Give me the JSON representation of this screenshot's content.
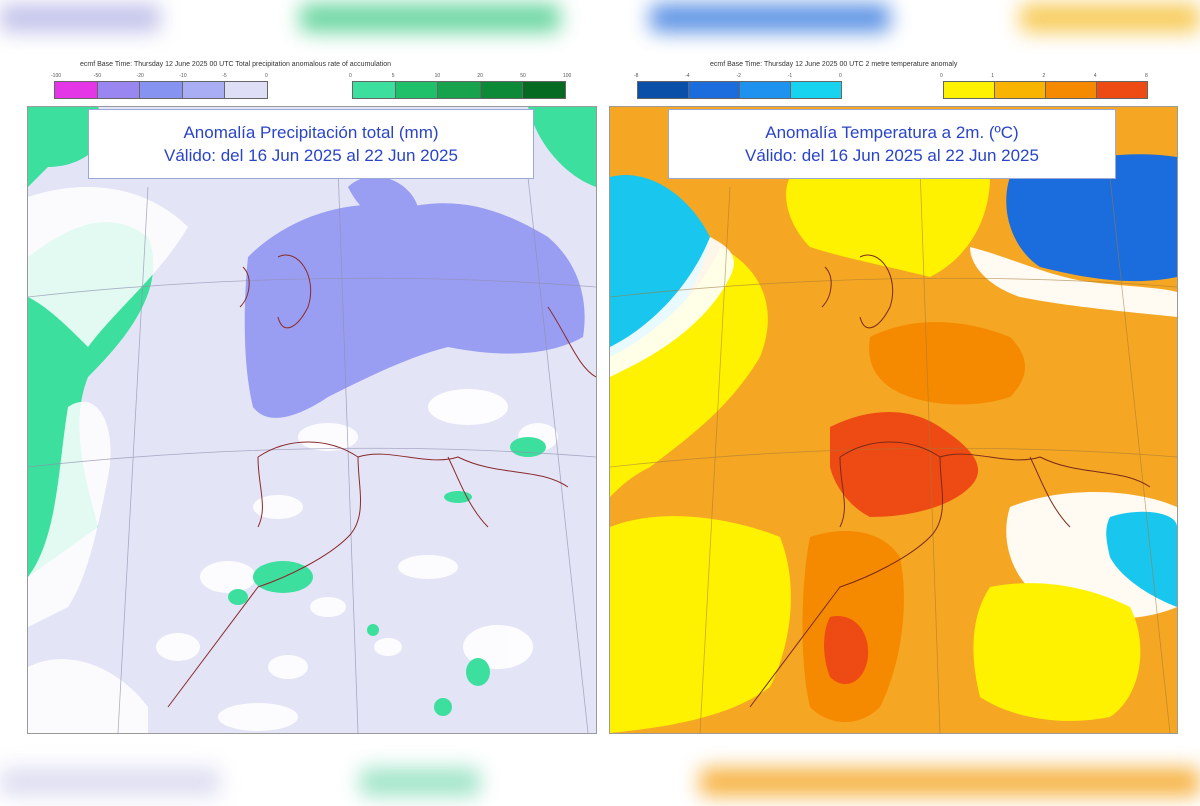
{
  "left_map": {
    "caption": "ecmf Base Time: Thursday 12 June 2025 00 UTC Total precipitation anomalous rate of accumulation",
    "title_line1": "Anomalía Precipitación total (mm)",
    "title_line2": "Válido: del 16 Jun 2025 al 22 Jun 2025",
    "negative_scale": {
      "colors": [
        "#e436e6",
        "#9a86f0",
        "#8793f0",
        "#a9adf3",
        "#dedef6"
      ],
      "ticks": [
        "-100",
        "-50",
        "-20",
        "-10",
        "-5",
        "0"
      ]
    },
    "positive_scale": {
      "colors": [
        "#3ddf9e",
        "#20c06a",
        "#17a24e",
        "#0d8a37",
        "#076a22"
      ],
      "ticks": [
        "0",
        "5",
        "10",
        "20",
        "50",
        "100"
      ]
    }
  },
  "right_map": {
    "caption": "ecmf Base Time: Thursday 12 June 2025 00 UTC 2 metre temperature anomaly",
    "title_line1": "Anomalía Temperatura a 2m. (ºC)",
    "title_line2": "Válido: del 16 Jun 2025 al 22 Jun 2025",
    "cold_scale": {
      "colors": [
        "#0a4fa8",
        "#1b6ddd",
        "#1f92f0",
        "#18d3f0"
      ],
      "ticks": [
        "-8",
        "-4",
        "-2",
        "-1",
        "0"
      ]
    },
    "warm_scale": {
      "colors": [
        "#fff200",
        "#f8b400",
        "#f58a00",
        "#ee4b14"
      ],
      "ticks": [
        "0",
        "1",
        "2",
        "4",
        "8"
      ]
    }
  },
  "colors": {
    "title_text": "#2a44c8",
    "precip_base": "#e4e4f7",
    "precip_dry": "#9a9ef2",
    "precip_wet": "#3ddf9e",
    "temp_base": "#f5a623",
    "temp_hot": "#ee4b14",
    "temp_cold": "#18c6ee"
  }
}
